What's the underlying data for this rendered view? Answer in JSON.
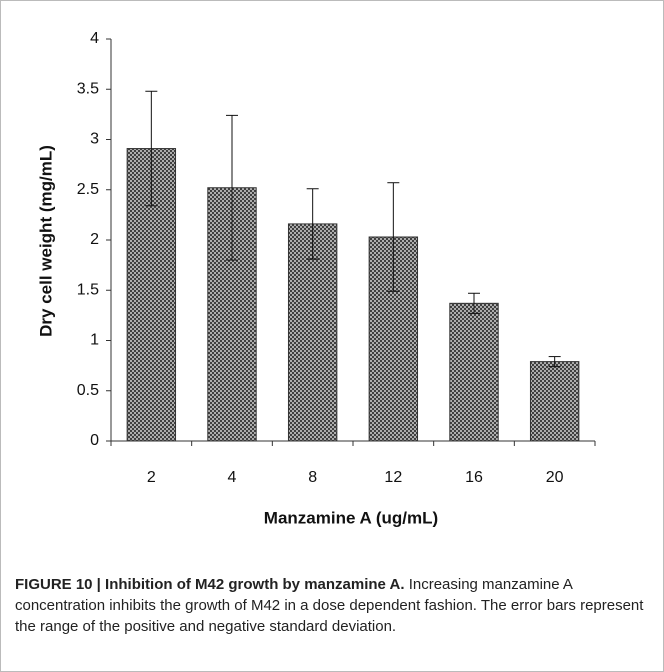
{
  "chart_data": {
    "type": "bar",
    "x_label": "Manzamine A (ug/mL)",
    "y_label": "Dry cell weight (mg/mL)",
    "categories": [
      "2",
      "4",
      "8",
      "12",
      "16",
      "20"
    ],
    "values": [
      2.91,
      2.52,
      2.16,
      2.03,
      1.37,
      0.79
    ],
    "errors": [
      0.57,
      0.72,
      0.35,
      0.54,
      0.1,
      0.05
    ],
    "color": "#555555",
    "ylim": [
      0,
      4
    ],
    "yticks": [
      0,
      0.5,
      1,
      1.5,
      2,
      2.5,
      3,
      3.5,
      4
    ]
  },
  "caption": {
    "label": "FIGURE 10 | Inhibition of M42 growth by manzamine A.",
    "text": "Increasing manzamine A concentration inhibits the growth of M42 in a dose dependent fashion. The error bars represent the range of the positive and negative standard deviation."
  }
}
